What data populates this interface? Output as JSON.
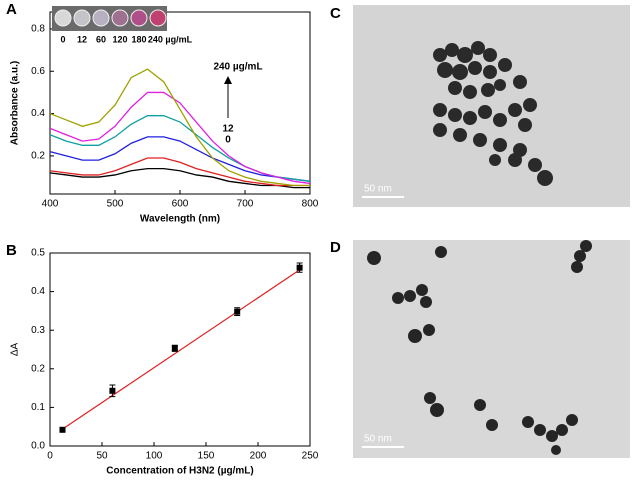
{
  "chart_data": [
    {
      "type": "line",
      "panel": "A",
      "x_label": "Wavelength (nm)",
      "y_label": "Absorbance (a.u.)",
      "x": [
        400,
        425,
        450,
        475,
        500,
        525,
        550,
        575,
        600,
        625,
        650,
        675,
        700,
        725,
        750,
        775,
        800
      ],
      "series": [
        {
          "name": "0",
          "color": "#000000",
          "values": [
            0.12,
            0.11,
            0.1,
            0.1,
            0.11,
            0.13,
            0.14,
            0.14,
            0.13,
            0.11,
            0.1,
            0.08,
            0.07,
            0.06,
            0.06,
            0.05,
            0.05
          ]
        },
        {
          "name": "12",
          "color": "#e02020",
          "values": [
            0.13,
            0.12,
            0.11,
            0.11,
            0.13,
            0.16,
            0.19,
            0.19,
            0.17,
            0.14,
            0.12,
            0.1,
            0.08,
            0.07,
            0.06,
            0.06,
            0.06
          ]
        },
        {
          "color": "#2020e0",
          "values": [
            0.22,
            0.2,
            0.18,
            0.18,
            0.21,
            0.26,
            0.29,
            0.29,
            0.27,
            0.23,
            0.19,
            0.16,
            0.13,
            0.11,
            0.1,
            0.09,
            0.08
          ]
        },
        {
          "color": "#10a0a0",
          "values": [
            0.3,
            0.27,
            0.25,
            0.25,
            0.29,
            0.35,
            0.39,
            0.39,
            0.36,
            0.3,
            0.24,
            0.19,
            0.15,
            0.12,
            0.1,
            0.09,
            0.08
          ]
        },
        {
          "color": "#e020e0",
          "values": [
            0.33,
            0.3,
            0.27,
            0.28,
            0.34,
            0.43,
            0.5,
            0.5,
            0.45,
            0.36,
            0.27,
            0.2,
            0.15,
            0.12,
            0.1,
            0.08,
            0.07
          ]
        },
        {
          "name": "240 µg/mL",
          "color": "#a0a000",
          "values": [
            0.4,
            0.37,
            0.34,
            0.36,
            0.44,
            0.57,
            0.61,
            0.55,
            0.42,
            0.29,
            0.19,
            0.13,
            0.1,
            0.08,
            0.07,
            0.06,
            0.06
          ]
        }
      ],
      "xlim": [
        400,
        800
      ],
      "xticks": [
        400,
        500,
        600,
        700,
        800
      ],
      "ylim": [
        0.02,
        0.88
      ],
      "yticks": [
        0.2,
        0.4,
        0.6,
        0.8
      ],
      "inset_labels": [
        "0",
        "12",
        "60",
        "120",
        "180",
        "240 µg/mL"
      ]
    },
    {
      "type": "scatter",
      "panel": "B",
      "x_label": "Concentration of H3N2 (µg/mL)",
      "y_label": "ΔA",
      "x": [
        12,
        60,
        120,
        180,
        240
      ],
      "values": [
        0.042,
        0.143,
        0.253,
        0.348,
        0.462
      ],
      "errors": [
        0.005,
        0.015,
        0.008,
        0.01,
        0.012
      ],
      "color": "#000000",
      "fit": {
        "color": "#e02020",
        "x": [
          10,
          242
        ],
        "values": [
          0.04,
          0.46
        ]
      },
      "xlim": [
        0,
        250
      ],
      "xticks": [
        0,
        50,
        100,
        150,
        200,
        250
      ],
      "ylim": [
        0,
        0.5
      ],
      "yticks": [
        {
          "value": 0,
          "label": "0.0"
        },
        0.1,
        0.2,
        0.3,
        0.4,
        0.5
      ]
    }
  ],
  "images": [
    {
      "label": "C",
      "scale_bar": "50 nm"
    },
    {
      "label": "D",
      "scale_bar": "50 nm"
    }
  ]
}
